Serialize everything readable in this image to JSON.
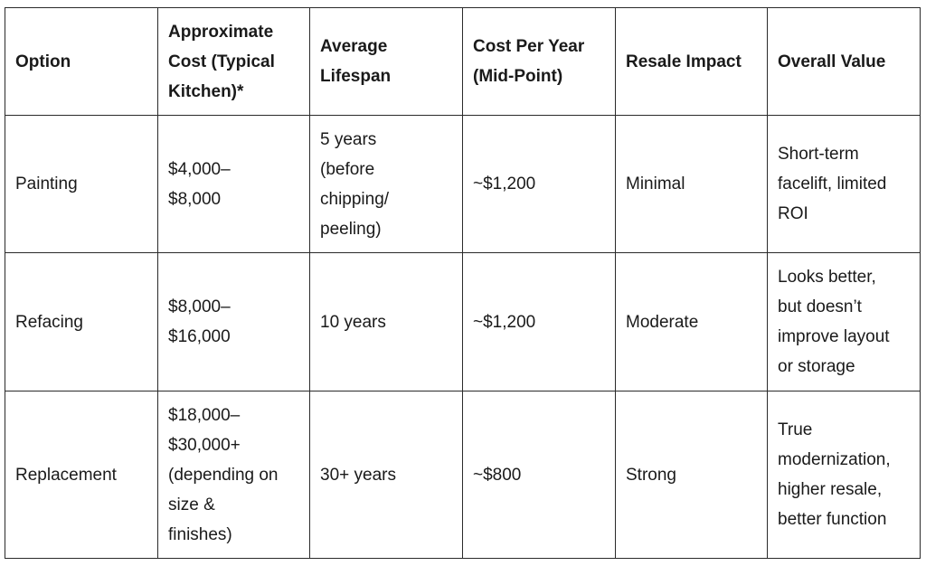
{
  "table": {
    "headers": [
      "Option",
      "Approximate\nCost (Typical\nKitchen)*",
      "Average\nLifespan",
      "Cost Per Year\n(Mid-Point)",
      "Resale Impact",
      "Overall Value"
    ],
    "rows": [
      [
        "Painting",
        "$4,000–\n$8,000",
        "5 years\n(before\nchipping/\npeeling)",
        "~$1,200",
        "Minimal",
        "Short-term\nfacelift, limited\nROI"
      ],
      [
        "Refacing",
        "$8,000–\n$16,000",
        "10 years",
        "~$1,200",
        "Moderate",
        "Looks better,\nbut doesn’t\nimprove layout\nor storage"
      ],
      [
        "Replacement",
        "$18,000–\n$30,000+\n(depending on\nsize &\nfinishes)",
        "30+ years",
        "~$800",
        "Strong",
        "True\nmodernization,\nhigher resale,\nbetter function"
      ]
    ]
  }
}
